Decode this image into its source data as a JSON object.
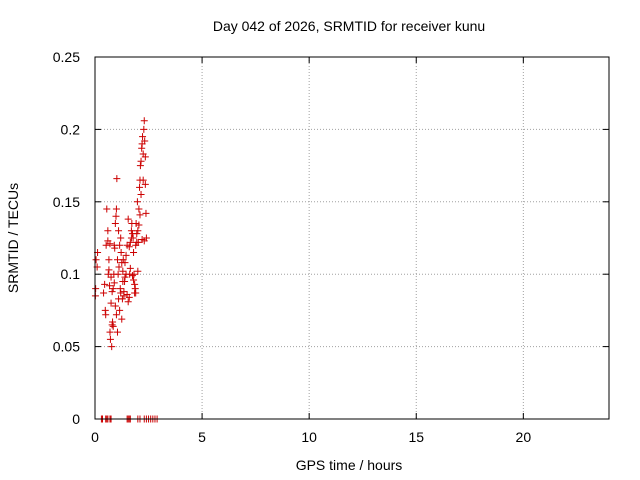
{
  "chart_data": {
    "type": "scatter",
    "title": "Day 042 of 2026, SRMTID for receiver kunu",
    "xlabel": "GPS time / hours",
    "ylabel": "SRMTID / TECUs",
    "xlim": [
      0,
      24
    ],
    "ylim": [
      0,
      0.25
    ],
    "xticks": [
      0,
      5,
      10,
      15,
      20
    ],
    "xtick_labels": [
      "0",
      "5",
      "10",
      "15",
      "20"
    ],
    "yticks": [
      0,
      0.05,
      0.1,
      0.15,
      0.2,
      0.25
    ],
    "ytick_labels": [
      "0",
      "0.05",
      "0.1",
      "0.15",
      "0.2",
      "0.25"
    ],
    "grid": true,
    "marker": "+",
    "color": "#cc0000",
    "series": [
      {
        "name": "SRMTID",
        "x": [
          0.02,
          0.03,
          0.05,
          0.1,
          0.12,
          0.4,
          0.45,
          0.48,
          0.5,
          0.52,
          0.55,
          0.6,
          0.62,
          0.65,
          0.68,
          0.7,
          0.72,
          0.75,
          0.78,
          0.8,
          0.82,
          0.85,
          0.88,
          0.9,
          0.92,
          0.95,
          0.98,
          1.0,
          1.02,
          1.05,
          1.08,
          1.1,
          1.12,
          1.15,
          1.18,
          1.2,
          1.22,
          1.25,
          1.28,
          1.3,
          1.32,
          1.35,
          1.38,
          1.4,
          1.45,
          1.5,
          1.55,
          1.6,
          1.62,
          1.65,
          1.7,
          1.72,
          1.75,
          1.78,
          1.8,
          1.82,
          1.85,
          1.88,
          1.9,
          1.92,
          1.95,
          1.98,
          2.0,
          2.02,
          2.05,
          2.08,
          2.1,
          2.12,
          2.15,
          2.18,
          2.2,
          2.22,
          2.25,
          2.28,
          2.3,
          2.32,
          2.35,
          2.38,
          2.4,
          0.6,
          0.7,
          0.8,
          0.9,
          1.0,
          1.1,
          1.2,
          1.3,
          1.4,
          1.5,
          1.6,
          1.7,
          1.8,
          1.9,
          2.0,
          2.1,
          2.2,
          2.3,
          0.65,
          0.75,
          0.85,
          0.95,
          1.05,
          1.15,
          1.25,
          1.35,
          1.45,
          1.55,
          1.65,
          1.75,
          1.85,
          1.95,
          2.05,
          2.15,
          2.25,
          2.35,
          0.3,
          0.35,
          0.5,
          0.55,
          0.6,
          0.7,
          0.75,
          1.5,
          1.55,
          1.6,
          1.65,
          2.0,
          2.1,
          2.3,
          2.4,
          2.5,
          2.6,
          2.7,
          2.8,
          2.9
        ],
        "y": [
          0.085,
          0.09,
          0.11,
          0.105,
          0.115,
          0.087,
          0.093,
          0.075,
          0.072,
          0.12,
          0.145,
          0.123,
          0.1,
          0.11,
          0.092,
          0.06,
          0.055,
          0.08,
          0.05,
          0.065,
          0.067,
          0.09,
          0.1,
          0.12,
          0.118,
          0.135,
          0.14,
          0.145,
          0.166,
          0.11,
          0.1,
          0.13,
          0.105,
          0.12,
          0.09,
          0.125,
          0.115,
          0.108,
          0.083,
          0.102,
          0.11,
          0.085,
          0.095,
          0.098,
          0.1,
          0.12,
          0.138,
          0.084,
          0.1,
          0.122,
          0.13,
          0.135,
          0.128,
          0.125,
          0.115,
          0.1,
          0.093,
          0.09,
          0.12,
          0.135,
          0.128,
          0.15,
          0.13,
          0.122,
          0.145,
          0.16,
          0.165,
          0.175,
          0.178,
          0.187,
          0.19,
          0.195,
          0.183,
          0.2,
          0.206,
          0.192,
          0.162,
          0.142,
          0.125,
          0.13,
          0.121,
          0.088,
          0.094,
          0.072,
          0.083,
          0.087,
          0.095,
          0.108,
          0.086,
          0.119,
          0.125,
          0.096,
          0.087,
          0.102,
          0.141,
          0.124,
          0.123,
          0.103,
          0.098,
          0.064,
          0.078,
          0.06,
          0.075,
          0.069,
          0.088,
          0.113,
          0.081,
          0.104,
          0.099,
          0.087,
          0.122,
          0.134,
          0.155,
          0.165,
          0.181,
          0,
          0,
          0,
          0,
          0,
          0,
          0,
          0,
          0,
          0,
          0,
          0,
          0,
          0,
          0,
          0,
          0,
          0,
          0,
          0
        ]
      }
    ]
  }
}
